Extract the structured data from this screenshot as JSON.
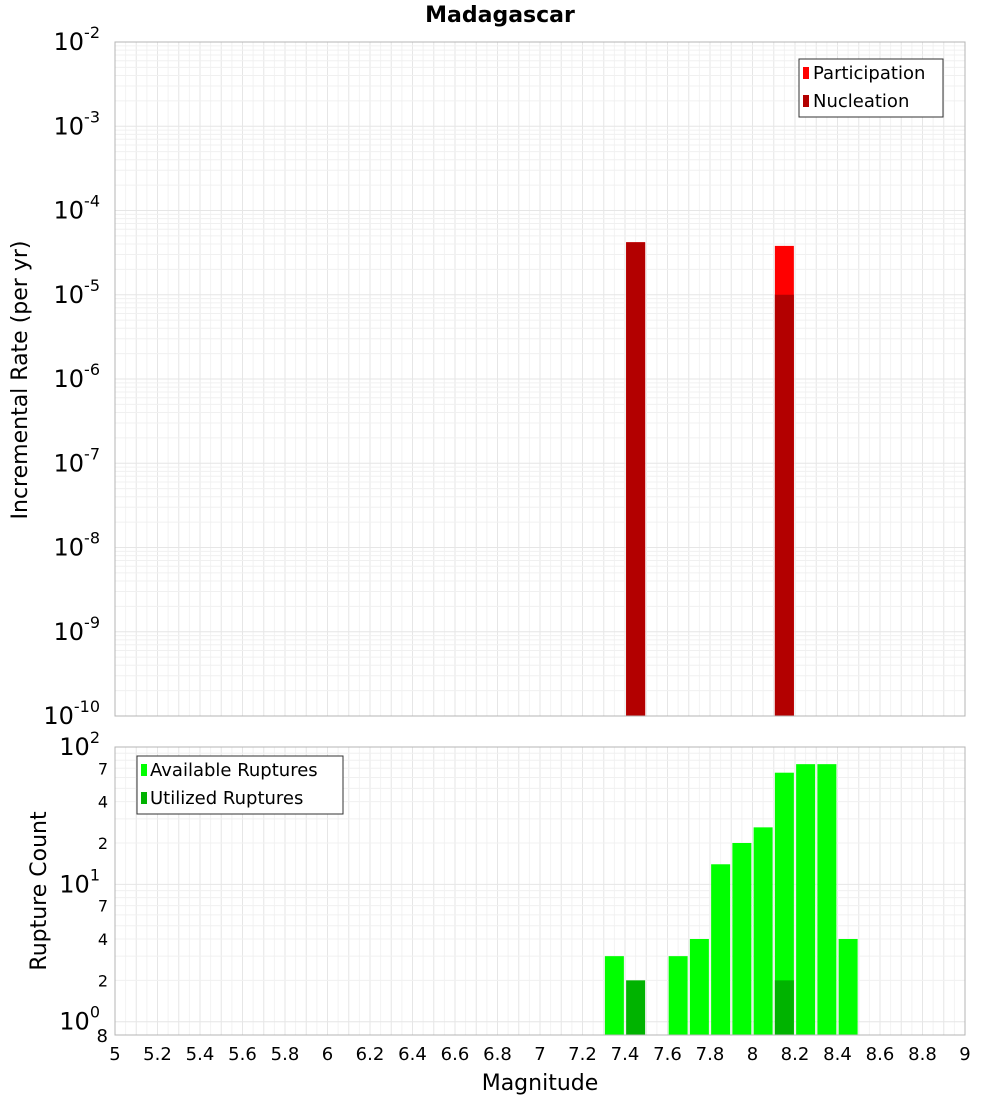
{
  "title": "Madagascar",
  "xlabel": "Magnitude",
  "x_ticks": [
    "5",
    "5.2",
    "5.4",
    "5.6",
    "5.8",
    "6",
    "6.2",
    "6.4",
    "6.6",
    "6.8",
    "7",
    "7.2",
    "7.4",
    "7.6",
    "7.8",
    "8",
    "8.2",
    "8.4",
    "8.6",
    "8.8",
    "9"
  ],
  "top_panel": {
    "ylabel": "Incremental Rate (per yr)",
    "y_tick_labels": [
      {
        "base": "10",
        "exp": "-10"
      },
      {
        "base": "10",
        "exp": "-9"
      },
      {
        "base": "10",
        "exp": "-8"
      },
      {
        "base": "10",
        "exp": "-7"
      },
      {
        "base": "10",
        "exp": "-6"
      },
      {
        "base": "10",
        "exp": "-5"
      },
      {
        "base": "10",
        "exp": "-4"
      },
      {
        "base": "10",
        "exp": "-3"
      },
      {
        "base": "10",
        "exp": "-2"
      }
    ],
    "legend": [
      "Participation",
      "Nucleation"
    ]
  },
  "bottom_panel": {
    "ylabel": "Rupture Count",
    "y_major_labels": [
      {
        "base": "10",
        "exp": "0"
      },
      {
        "base": "10",
        "exp": "1"
      },
      {
        "base": "10",
        "exp": "2"
      }
    ],
    "y_minor_labels": [
      "2",
      "4",
      "7",
      "2",
      "4",
      "7"
    ],
    "y_corner_label": "8",
    "legend": [
      "Available Ruptures",
      "Utilized Ruptures"
    ]
  },
  "colors": {
    "participation": "#ff0000",
    "nucleation": "#b30000",
    "available": "#00ff00",
    "utilized": "#00b300",
    "grid": "#e6e6e6",
    "frame": "#b4b4b4"
  },
  "chart_data": [
    {
      "type": "bar",
      "xlabel": "Magnitude",
      "ylabel": "Incremental Rate (per yr)",
      "yscale": "log",
      "xlim": [
        5,
        9
      ],
      "ylim": [
        1e-10,
        0.01
      ],
      "grid": true,
      "legend_position": "top-right",
      "series": [
        {
          "name": "Participation",
          "x": [
            7.45,
            8.15
          ],
          "values": [
            4.2e-05,
            3.8e-05
          ]
        },
        {
          "name": "Nucleation",
          "x": [
            7.45,
            8.15
          ],
          "values": [
            4.2e-05,
            1e-05
          ]
        }
      ]
    },
    {
      "type": "bar",
      "xlabel": "Magnitude",
      "ylabel": "Rupture Count",
      "yscale": "log",
      "xlim": [
        5,
        9
      ],
      "ylim": [
        0.8,
        100
      ],
      "grid": true,
      "legend_position": "top-left",
      "series": [
        {
          "name": "Available Ruptures",
          "x": [
            7.35,
            7.65,
            7.75,
            7.85,
            7.95,
            8.05,
            8.15,
            8.25,
            8.35,
            8.45
          ],
          "values": [
            3,
            3,
            4,
            14,
            20,
            26,
            65,
            75,
            75,
            4
          ]
        },
        {
          "name": "Utilized Ruptures",
          "x": [
            7.45,
            8.15
          ],
          "values": [
            2,
            2
          ]
        }
      ]
    }
  ]
}
